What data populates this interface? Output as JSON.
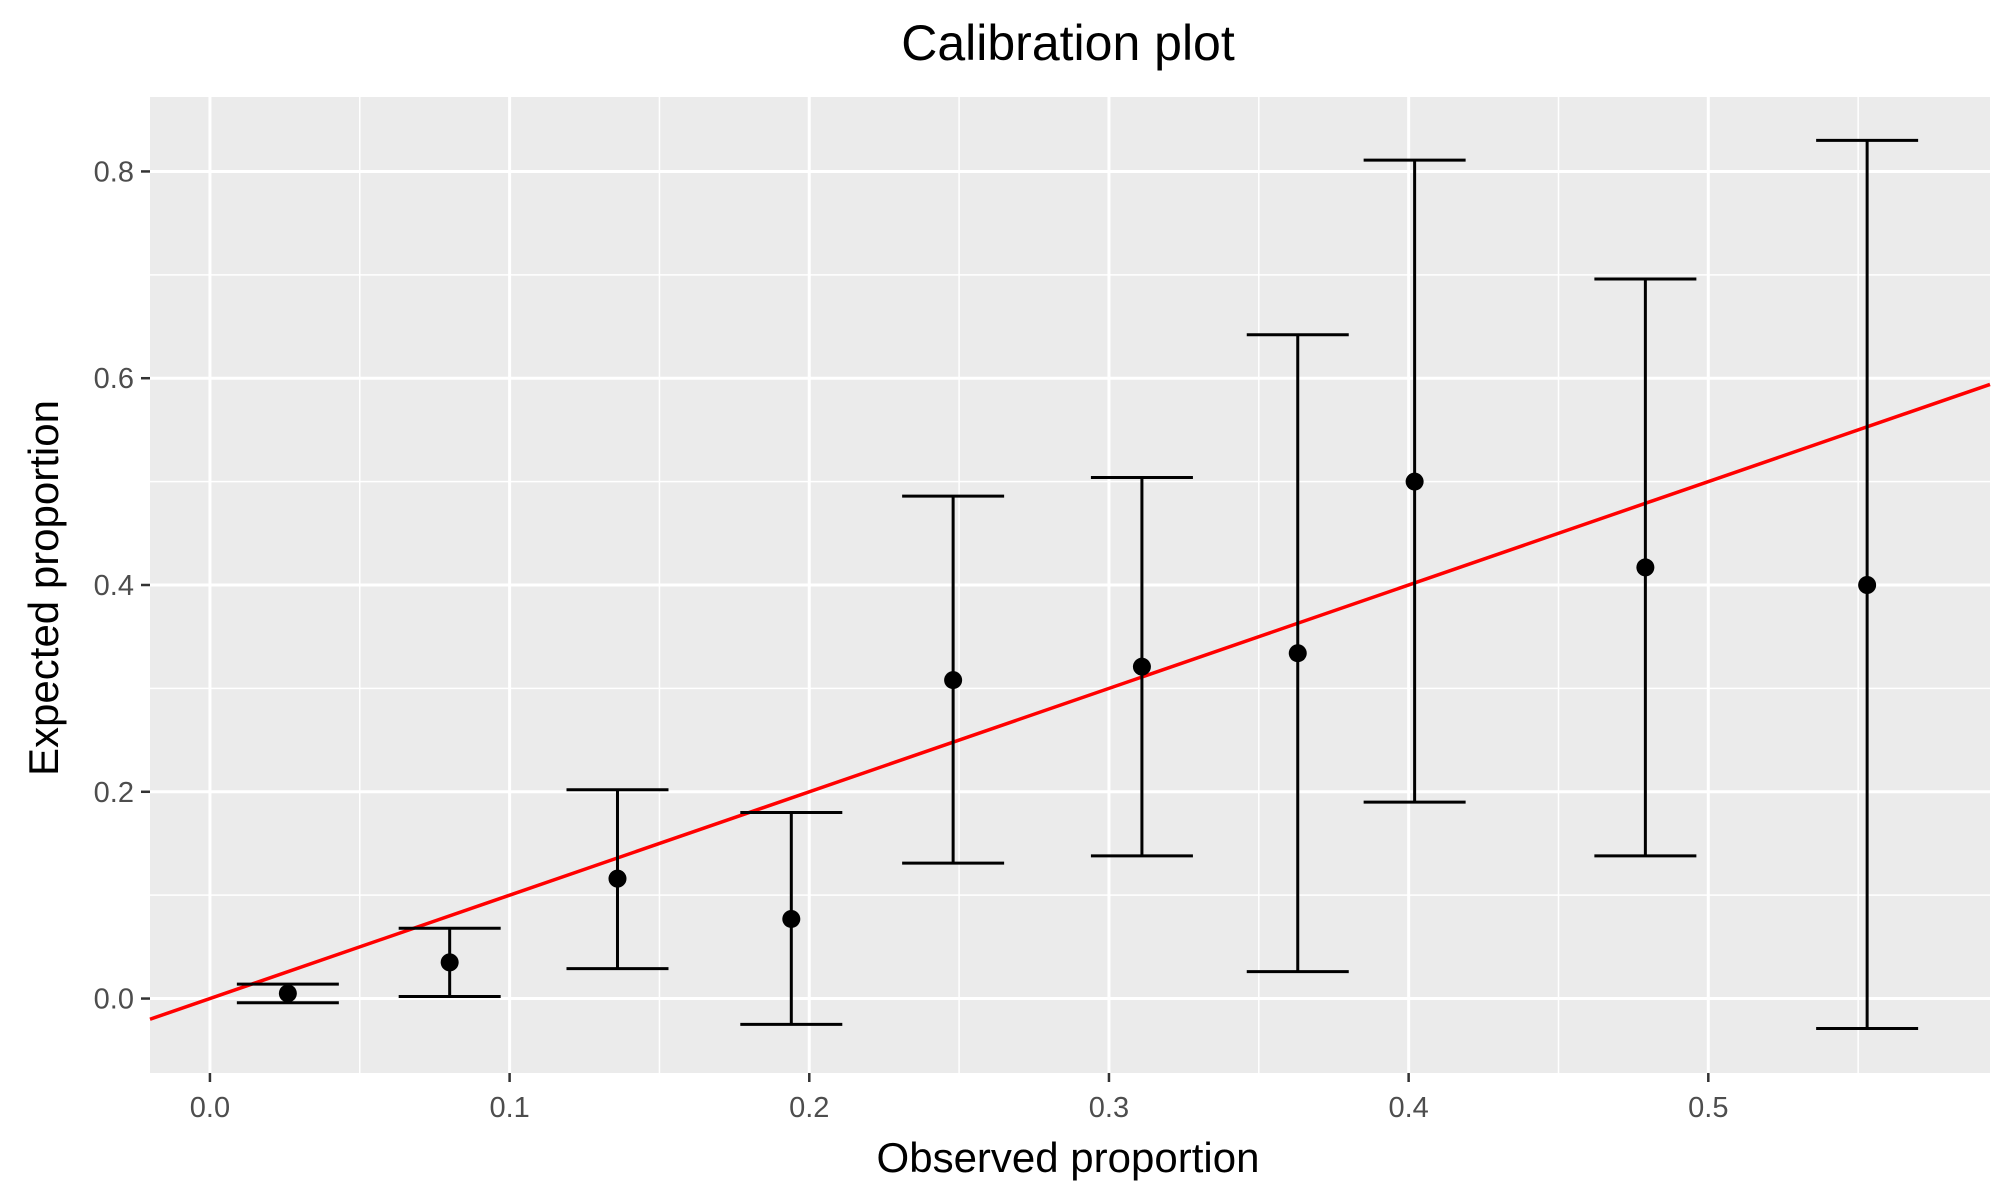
{
  "chart_data": {
    "type": "scatter",
    "title": "Calibration plot",
    "xlabel": "Observed proportion",
    "ylabel": "Expected proportion",
    "xlim": [
      -0.02,
      0.594
    ],
    "ylim": [
      -0.072,
      0.872
    ],
    "x_ticks": [
      0.0,
      0.1,
      0.2,
      0.3,
      0.4,
      0.5
    ],
    "x_tick_labels": [
      "0.0",
      "0.1",
      "0.2",
      "0.3",
      "0.4",
      "0.5"
    ],
    "y_ticks": [
      0.0,
      0.2,
      0.4,
      0.6,
      0.8
    ],
    "y_tick_labels": [
      "0.0",
      "0.2",
      "0.4",
      "0.6",
      "0.8"
    ],
    "grid": true,
    "points": [
      {
        "x": 0.026,
        "y": 0.005,
        "lower": -0.004,
        "upper": 0.014
      },
      {
        "x": 0.08,
        "y": 0.035,
        "lower": 0.002,
        "upper": 0.068
      },
      {
        "x": 0.136,
        "y": 0.116,
        "lower": 0.029,
        "upper": 0.202
      },
      {
        "x": 0.194,
        "y": 0.077,
        "lower": -0.025,
        "upper": 0.18
      },
      {
        "x": 0.248,
        "y": 0.308,
        "lower": 0.131,
        "upper": 0.486
      },
      {
        "x": 0.311,
        "y": 0.321,
        "lower": 0.138,
        "upper": 0.504
      },
      {
        "x": 0.363,
        "y": 0.334,
        "lower": 0.026,
        "upper": 0.642
      },
      {
        "x": 0.402,
        "y": 0.5,
        "lower": 0.19,
        "upper": 0.811
      },
      {
        "x": 0.479,
        "y": 0.417,
        "lower": 0.138,
        "upper": 0.696
      },
      {
        "x": 0.553,
        "y": 0.4,
        "lower": -0.029,
        "upper": 0.83
      }
    ],
    "reference_line": {
      "slope": 1,
      "intercept": 0,
      "color": "#ff0000"
    },
    "colors": {
      "panel": "#ebebeb",
      "grid_major": "#ffffff",
      "points": "#000000",
      "reference": "#ff0000",
      "tick_text": "#4d4d4d"
    }
  }
}
